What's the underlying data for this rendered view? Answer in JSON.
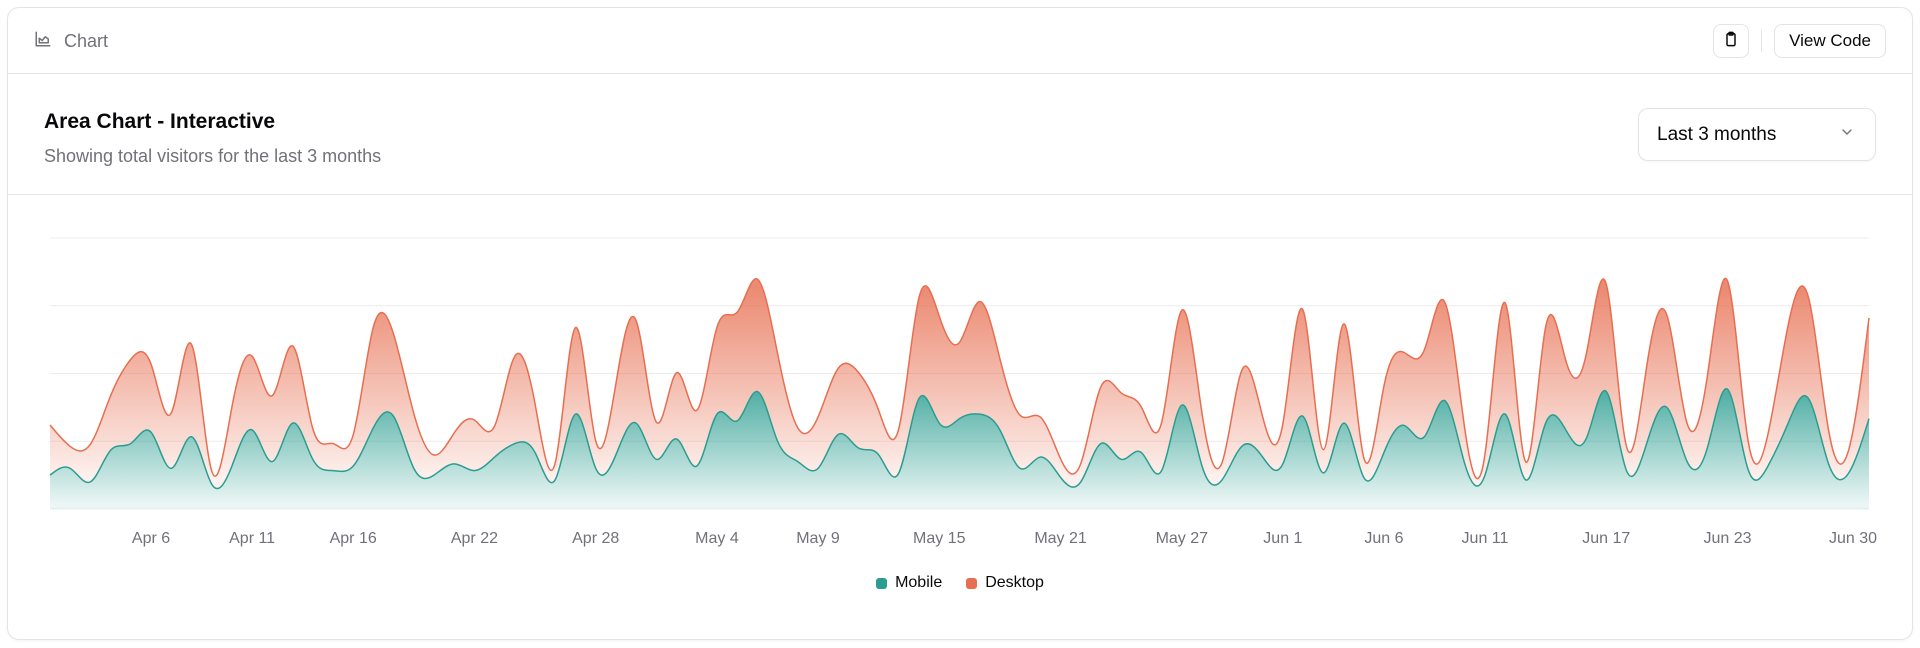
{
  "topbar": {
    "title": "Chart",
    "icon": "area-chart-icon",
    "copy_icon": "clipboard-icon",
    "view_code": "View Code"
  },
  "header": {
    "title": "Area Chart - Interactive",
    "subtitle": "Showing total visitors for the last 3 months"
  },
  "range_select": {
    "value": "Last 3 months",
    "icon": "chevron-down-icon"
  },
  "colors": {
    "mobile": "#2a9d90",
    "desktop": "#e76e50"
  },
  "chart_data": {
    "type": "area",
    "stacked": true,
    "curve": "natural",
    "ylim": [
      0,
      1200
    ],
    "grid": "horizontal",
    "legend": "bottom",
    "x_tick_labels": [
      "Apr 6",
      "Apr 11",
      "Apr 16",
      "Apr 22",
      "Apr 28",
      "May 4",
      "May 9",
      "May 15",
      "May 21",
      "May 27",
      "Jun 1",
      "Jun 6",
      "Jun 11",
      "Jun 17",
      "Jun 23",
      "Jun 30"
    ],
    "x_tick_dates": [
      "2024-04-06",
      "2024-04-11",
      "2024-04-16",
      "2024-04-22",
      "2024-04-28",
      "2024-05-04",
      "2024-05-09",
      "2024-05-15",
      "2024-05-21",
      "2024-05-27",
      "2024-06-01",
      "2024-06-06",
      "2024-06-11",
      "2024-06-17",
      "2024-06-23",
      "2024-06-30"
    ],
    "x": [
      "2024-04-01",
      "2024-04-02",
      "2024-04-03",
      "2024-04-04",
      "2024-04-05",
      "2024-04-06",
      "2024-04-07",
      "2024-04-08",
      "2024-04-09",
      "2024-04-10",
      "2024-04-11",
      "2024-04-12",
      "2024-04-13",
      "2024-04-14",
      "2024-04-15",
      "2024-04-16",
      "2024-04-17",
      "2024-04-18",
      "2024-04-19",
      "2024-04-20",
      "2024-04-21",
      "2024-04-22",
      "2024-04-23",
      "2024-04-24",
      "2024-04-25",
      "2024-04-26",
      "2024-04-27",
      "2024-04-28",
      "2024-04-29",
      "2024-04-30",
      "2024-05-01",
      "2024-05-02",
      "2024-05-03",
      "2024-05-04",
      "2024-05-05",
      "2024-05-06",
      "2024-05-07",
      "2024-05-08",
      "2024-05-09",
      "2024-05-10",
      "2024-05-11",
      "2024-05-12",
      "2024-05-13",
      "2024-05-14",
      "2024-05-15",
      "2024-05-16",
      "2024-05-17",
      "2024-05-18",
      "2024-05-19",
      "2024-05-20",
      "2024-05-21",
      "2024-05-22",
      "2024-05-23",
      "2024-05-24",
      "2024-05-25",
      "2024-05-26",
      "2024-05-27",
      "2024-05-28",
      "2024-05-29",
      "2024-05-30",
      "2024-05-31",
      "2024-06-01",
      "2024-06-02",
      "2024-06-03",
      "2024-06-04",
      "2024-06-05",
      "2024-06-06",
      "2024-06-07",
      "2024-06-08",
      "2024-06-09",
      "2024-06-10",
      "2024-06-11",
      "2024-06-12",
      "2024-06-13",
      "2024-06-14",
      "2024-06-15",
      "2024-06-16",
      "2024-06-17",
      "2024-06-18",
      "2024-06-19",
      "2024-06-20",
      "2024-06-21",
      "2024-06-22",
      "2024-06-23",
      "2024-06-24",
      "2024-06-25",
      "2024-06-26",
      "2024-06-27",
      "2024-06-28",
      "2024-06-29",
      "2024-06-30"
    ],
    "series": [
      {
        "name": "Mobile",
        "values": [
          150,
          180,
          120,
          260,
          290,
          340,
          180,
          320,
          110,
          190,
          350,
          210,
          380,
          220,
          170,
          190,
          360,
          410,
          180,
          150,
          200,
          170,
          230,
          290,
          250,
          130,
          420,
          180,
          240,
          380,
          220,
          310,
          190,
          420,
          390,
          520,
          300,
          210,
          180,
          330,
          270,
          240,
          160,
          490,
          380,
          400,
          420,
          350,
          180,
          230,
          140,
          120,
          290,
          220,
          250,
          170,
          460,
          190,
          130,
          280,
          230,
          200,
          410,
          160,
          380,
          140,
          250,
          370,
          320,
          480,
          200,
          150,
          420,
          130,
          380,
          350,
          310,
          520,
          170,
          290,
          450,
          210,
          270,
          530,
          180,
          190,
          380,
          490,
          200,
          160,
          400
        ]
      },
      {
        "name": "Desktop",
        "values": [
          222,
          97,
          167,
          242,
          373,
          301,
          245,
          409,
          59,
          261,
          327,
          292,
          342,
          137,
          120,
          138,
          446,
          364,
          243,
          89,
          137,
          224,
          138,
          387,
          215,
          75,
          383,
          122,
          315,
          454,
          165,
          293,
          247,
          385,
          481,
          498,
          388,
          149,
          227,
          293,
          335,
          197,
          197,
          448,
          473,
          338,
          499,
          315,
          235,
          177,
          82,
          81,
          252,
          294,
          201,
          213,
          420,
          233,
          78,
          340,
          178,
          178,
          470,
          103,
          439,
          88,
          294,
          323,
          385,
          438,
          155,
          92,
          492,
          81,
          426,
          307,
          371,
          475,
          107,
          341,
          408,
          169,
          317,
          480,
          132,
          141,
          434,
          448,
          149,
          103,
          446
        ]
      }
    ]
  }
}
